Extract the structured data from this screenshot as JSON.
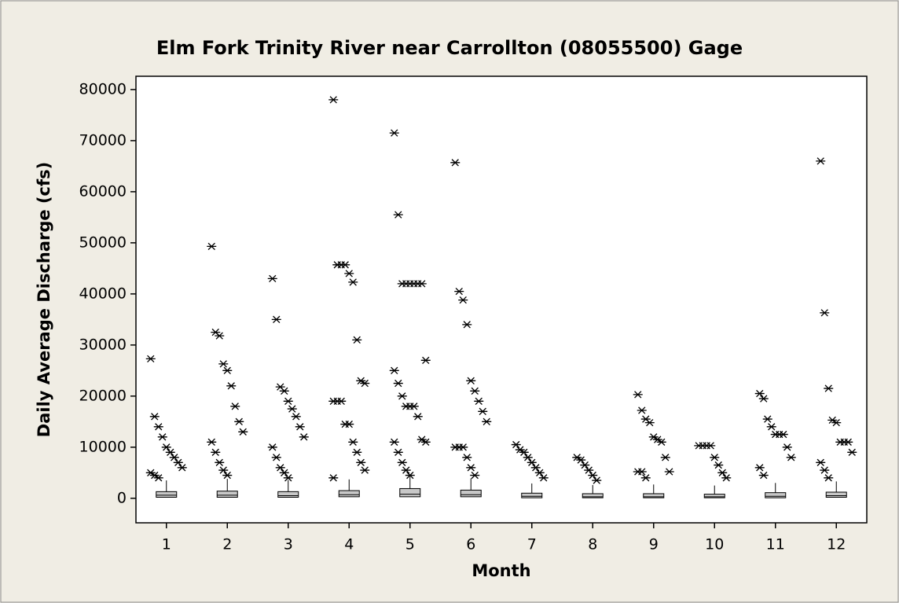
{
  "chart_data": {
    "type": "box",
    "title": "Elm Fork Trinity River near Carrollton (08055500) Gage",
    "x_label": "Month",
    "y_label": "Daily Average Discharge (cfs)",
    "categories": [
      "1",
      "2",
      "3",
      "4",
      "5",
      "6",
      "7",
      "8",
      "9",
      "10",
      "11",
      "12"
    ],
    "xlim": [
      0.5,
      12.5
    ],
    "ylim": [
      -4800,
      82600
    ],
    "yticks": [
      0,
      10000,
      20000,
      30000,
      40000,
      50000,
      60000,
      70000,
      80000
    ],
    "box_color": "#c8c8c8",
    "boxes": [
      {
        "q1": 200,
        "median": 600,
        "q3": 1300,
        "whisker_high": 3500,
        "outliers": [
          27300,
          16000,
          14000,
          12000,
          10000,
          9000,
          8000,
          7000,
          6000,
          5000,
          4500,
          4000
        ]
      },
      {
        "q1": 200,
        "median": 600,
        "q3": 1400,
        "whisker_high": 3800,
        "outliers": [
          49300,
          32500,
          31800,
          26300,
          25000,
          22000,
          18000,
          15000,
          13000,
          11000,
          9000,
          7000,
          5500,
          4500
        ]
      },
      {
        "q1": 200,
        "median": 500,
        "q3": 1300,
        "whisker_high": 3600,
        "outliers": [
          43000,
          35000,
          21800,
          21000,
          19000,
          17500,
          16000,
          14000,
          12000,
          10000,
          8000,
          6000,
          5000,
          4000
        ]
      },
      {
        "q1": 300,
        "median": 700,
        "q3": 1500,
        "whisker_high": 3700,
        "outliers": [
          78000,
          45700,
          45700,
          45700,
          44000,
          42300,
          31000,
          23000,
          22500,
          19000,
          19000,
          19000,
          14500,
          14500,
          11000,
          9000,
          7000,
          5500,
          4000
        ]
      },
      {
        "q1": 300,
        "median": 800,
        "q3": 1900,
        "whisker_high": 4300,
        "outliers": [
          71500,
          55500,
          42000,
          42000,
          42000,
          42000,
          42000,
          42000,
          27000,
          25000,
          22500,
          20000,
          18000,
          18000,
          18000,
          16000,
          11500,
          11000,
          11000,
          9000,
          7000,
          5500,
          4500
        ]
      },
      {
        "q1": 300,
        "median": 700,
        "q3": 1600,
        "whisker_high": 3900,
        "outliers": [
          65700,
          40500,
          38800,
          34000,
          23000,
          21000,
          19000,
          17000,
          15000,
          10000,
          10000,
          10000,
          8000,
          6000,
          4500
        ]
      },
      {
        "q1": 100,
        "median": 400,
        "q3": 1000,
        "whisker_high": 2900,
        "outliers": [
          10500,
          9500,
          9000,
          8000,
          7000,
          6000,
          5000,
          4000
        ]
      },
      {
        "q1": 100,
        "median": 300,
        "q3": 900,
        "whisker_high": 2600,
        "outliers": [
          8000,
          7500,
          6500,
          5500,
          4500,
          3500
        ]
      },
      {
        "q1": 100,
        "median": 300,
        "q3": 900,
        "whisker_high": 2700,
        "outliers": [
          20300,
          17200,
          15500,
          14800,
          12000,
          11500,
          11000,
          8000,
          5200,
          5200,
          5200,
          4000
        ]
      },
      {
        "q1": 100,
        "median": 300,
        "q3": 800,
        "whisker_high": 2500,
        "outliers": [
          10300,
          10300,
          10300,
          10300,
          8000,
          6500,
          5000,
          4000
        ]
      },
      {
        "q1": 100,
        "median": 400,
        "q3": 1100,
        "whisker_high": 3000,
        "outliers": [
          20500,
          19500,
          15500,
          14000,
          12500,
          12500,
          12500,
          10000,
          8000,
          6000,
          4500
        ]
      },
      {
        "q1": 200,
        "median": 500,
        "q3": 1200,
        "whisker_high": 3300,
        "outliers": [
          66000,
          36300,
          21500,
          15300,
          14800,
          11000,
          11000,
          11000,
          9000,
          7000,
          5500,
          4000
        ]
      }
    ]
  }
}
